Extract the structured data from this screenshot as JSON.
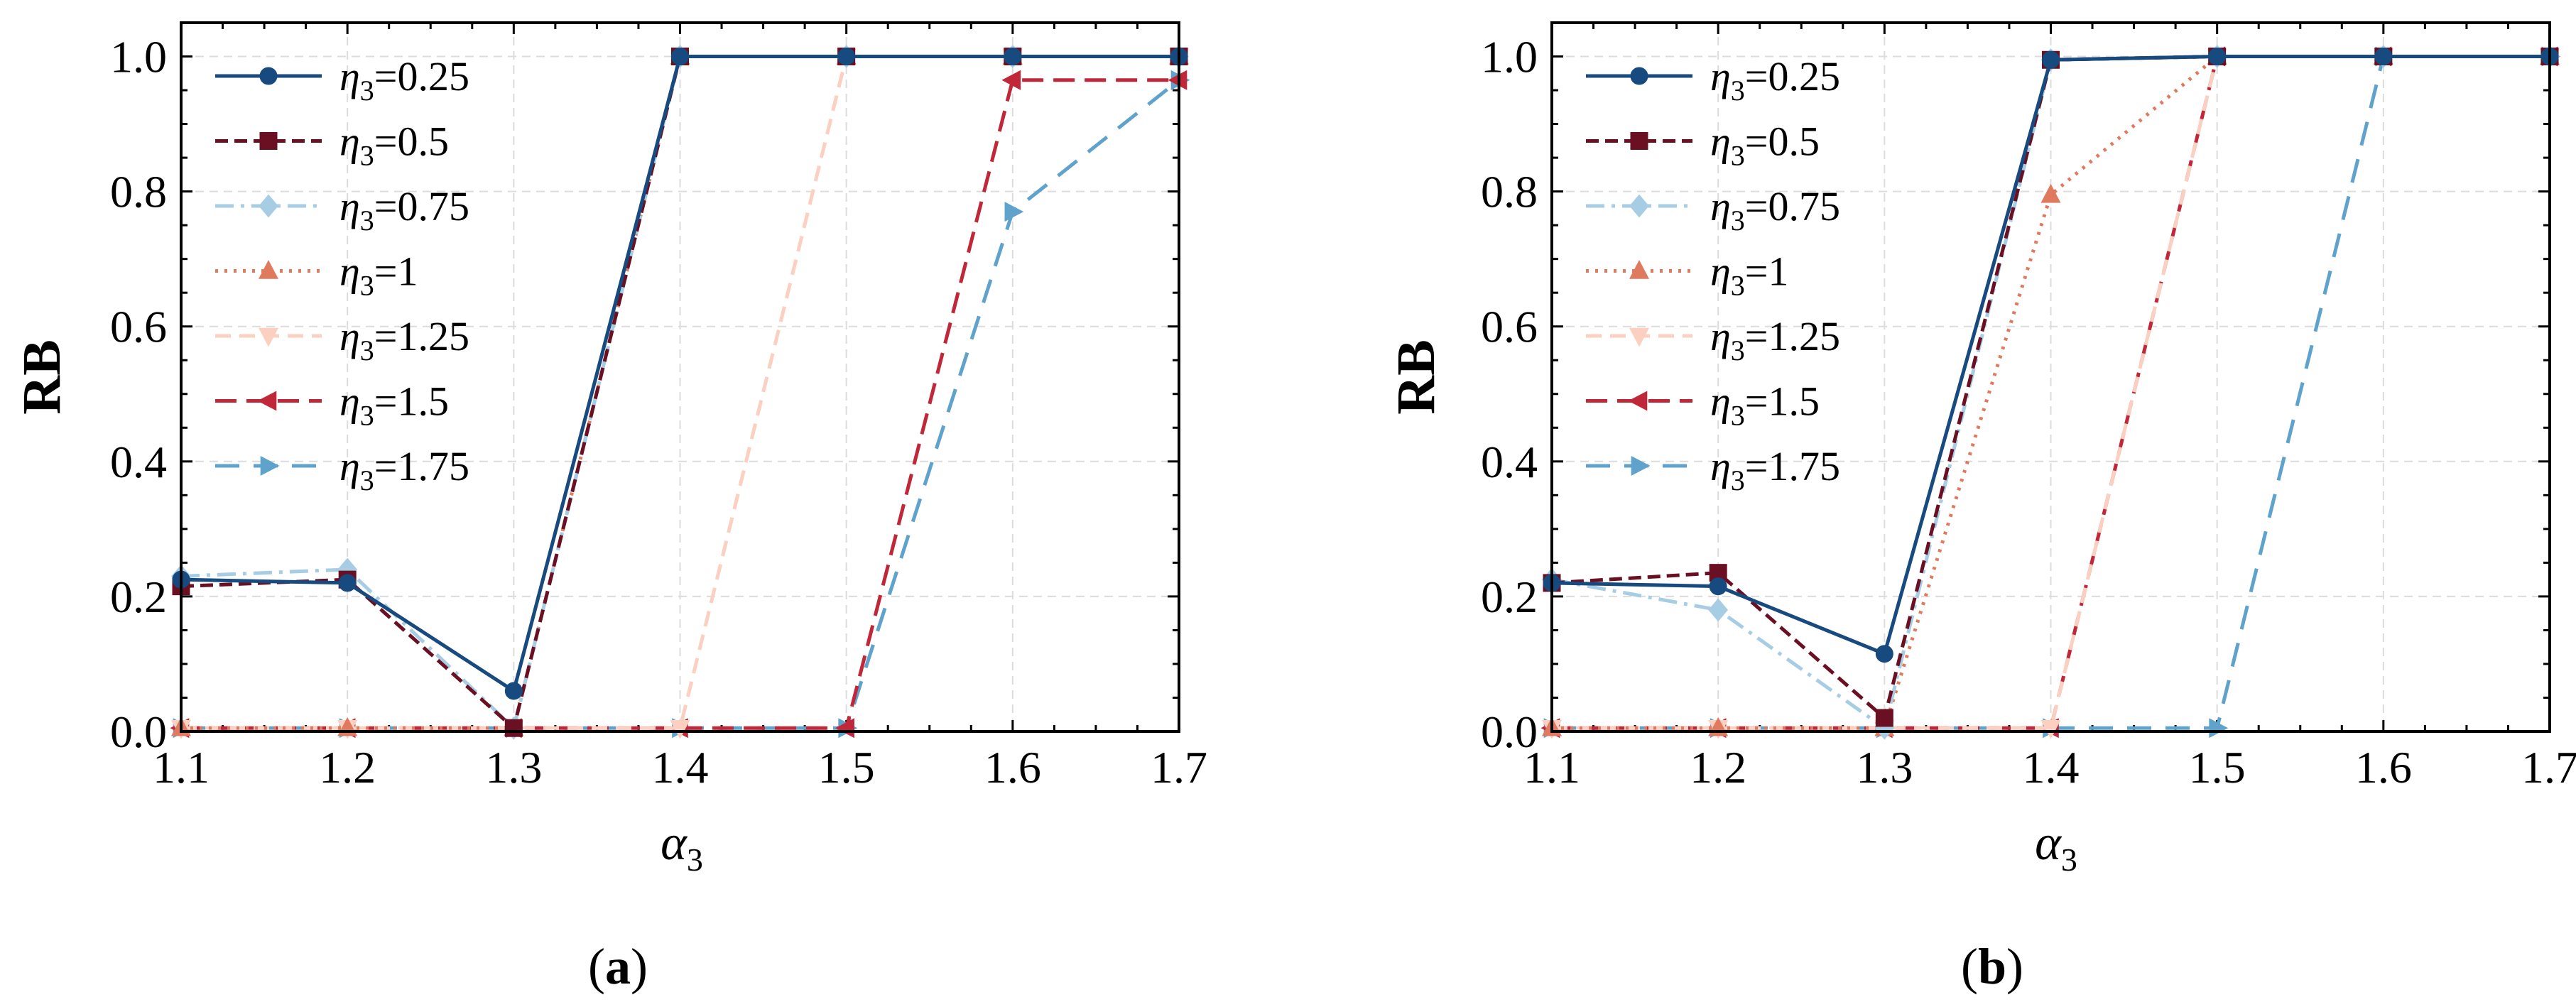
{
  "chart_data": [
    {
      "type": "line",
      "panel_label": "(a)",
      "xlabel_base": "α",
      "xlabel_sub": "3",
      "ylabel": "RB",
      "xlim": [
        1.1,
        1.7
      ],
      "ylim": [
        0.0,
        1.05
      ],
      "xticks": [
        1.1,
        1.2,
        1.3,
        1.4,
        1.5,
        1.6,
        1.7
      ],
      "xtick_labels": [
        "1.1",
        "1.2",
        "1.3",
        "1.4",
        "1.5",
        "1.6",
        "1.7"
      ],
      "yticks": [
        0.0,
        0.2,
        0.4,
        0.6,
        0.8,
        1.0
      ],
      "ytick_labels": [
        "0.0",
        "0.2",
        "0.4",
        "0.6",
        "0.8",
        "1.0"
      ],
      "grid": true,
      "legend_position": "top-left",
      "x": [
        1.1,
        1.2,
        1.3,
        1.4,
        1.5,
        1.6,
        1.7
      ],
      "series": [
        {
          "name": "η3=0.25",
          "eta_base": "η",
          "eta_sub": "3",
          "eta_val": "=0.25",
          "values": [
            0.225,
            0.22,
            0.06,
            1.0,
            1.0,
            1.0,
            1.0
          ]
        },
        {
          "name": "η3=0.5",
          "eta_base": "η",
          "eta_sub": "3",
          "eta_val": "=0.5",
          "values": [
            0.215,
            0.225,
            0.005,
            1.0,
            1.0,
            1.0,
            1.0
          ]
        },
        {
          "name": "η3=0.75",
          "eta_base": "η",
          "eta_sub": "3",
          "eta_val": "=0.75",
          "values": [
            0.23,
            0.24,
            0.005,
            1.0,
            1.0,
            1.0,
            1.0
          ]
        },
        {
          "name": "η3=1",
          "eta_base": "η",
          "eta_sub": "3",
          "eta_val": "=1",
          "values": [
            0.005,
            0.005,
            0.005,
            1.0,
            1.0,
            1.0,
            1.0
          ]
        },
        {
          "name": "η3=1.25",
          "eta_base": "η",
          "eta_sub": "3",
          "eta_val": "=1.25",
          "values": [
            0.005,
            0.005,
            0.005,
            0.005,
            1.0,
            1.0,
            1.0
          ]
        },
        {
          "name": "η3=1.5",
          "eta_base": "η",
          "eta_sub": "3",
          "eta_val": "=1.5",
          "values": [
            0.005,
            0.005,
            0.005,
            0.005,
            0.005,
            0.965,
            0.965
          ]
        },
        {
          "name": "η3=1.75",
          "eta_base": "η",
          "eta_sub": "3",
          "eta_val": "=1.75",
          "values": [
            0.005,
            0.005,
            0.005,
            0.005,
            0.005,
            0.77,
            0.965
          ]
        }
      ]
    },
    {
      "type": "line",
      "panel_label": "(b)",
      "xlabel_base": "α",
      "xlabel_sub": "3",
      "ylabel": "RB",
      "xlim": [
        1.1,
        1.7
      ],
      "ylim": [
        0.0,
        1.05
      ],
      "xticks": [
        1.1,
        1.2,
        1.3,
        1.4,
        1.5,
        1.6,
        1.7
      ],
      "xtick_labels": [
        "1.1",
        "1.2",
        "1.3",
        "1.4",
        "1.5",
        "1.6",
        "1.7"
      ],
      "yticks": [
        0.0,
        0.2,
        0.4,
        0.6,
        0.8,
        1.0
      ],
      "ytick_labels": [
        "0.0",
        "0.2",
        "0.4",
        "0.6",
        "0.8",
        "1.0"
      ],
      "grid": true,
      "legend_position": "top-left",
      "x": [
        1.1,
        1.2,
        1.3,
        1.4,
        1.5,
        1.6,
        1.7
      ],
      "series": [
        {
          "name": "η3=0.25",
          "eta_base": "η",
          "eta_sub": "3",
          "eta_val": "=0.25",
          "values": [
            0.22,
            0.215,
            0.115,
            0.995,
            1.0,
            1.0,
            1.0
          ]
        },
        {
          "name": "η3=0.5",
          "eta_base": "η",
          "eta_sub": "3",
          "eta_val": "=0.5",
          "values": [
            0.22,
            0.235,
            0.02,
            0.995,
            1.0,
            1.0,
            1.0
          ]
        },
        {
          "name": "η3=0.75",
          "eta_base": "η",
          "eta_sub": "3",
          "eta_val": "=0.75",
          "values": [
            0.225,
            0.18,
            0.005,
            0.995,
            1.0,
            1.0,
            1.0
          ]
        },
        {
          "name": "η3=1",
          "eta_base": "η",
          "eta_sub": "3",
          "eta_val": "=1",
          "values": [
            0.005,
            0.005,
            0.005,
            0.795,
            1.0,
            1.0,
            1.0
          ]
        },
        {
          "name": "η3=1.25",
          "eta_base": "η",
          "eta_sub": "3",
          "eta_val": "=1.25",
          "values": [
            0.005,
            0.005,
            0.005,
            0.005,
            1.0,
            1.0,
            1.0
          ]
        },
        {
          "name": "η3=1.5",
          "eta_base": "η",
          "eta_sub": "3",
          "eta_val": "=1.5",
          "values": [
            0.005,
            0.005,
            0.005,
            0.005,
            1.0,
            1.0,
            1.0
          ]
        },
        {
          "name": "η3=1.75",
          "eta_base": "η",
          "eta_sub": "3",
          "eta_val": "=1.75",
          "values": [
            0.005,
            0.005,
            0.005,
            0.005,
            0.005,
            1.0,
            1.0
          ]
        }
      ]
    }
  ],
  "series_styles": [
    {
      "color": "#174a7e",
      "dash": "",
      "marker": "circle"
    },
    {
      "color": "#6b0f22",
      "dash": "18 9",
      "marker": "square"
    },
    {
      "color": "#a6cde3",
      "dash": "26 10 5 10",
      "marker": "diamond"
    },
    {
      "color": "#e07a5f",
      "dash": "4 9",
      "marker": "triangle-up"
    },
    {
      "color": "#fbd0c0",
      "dash": "22 12",
      "marker": "triangle-down"
    },
    {
      "color": "#c0283a",
      "dash": "30 14",
      "marker": "triangle-left"
    },
    {
      "color": "#5fa3cc",
      "dash": "34 20",
      "marker": "triangle-right"
    }
  ]
}
